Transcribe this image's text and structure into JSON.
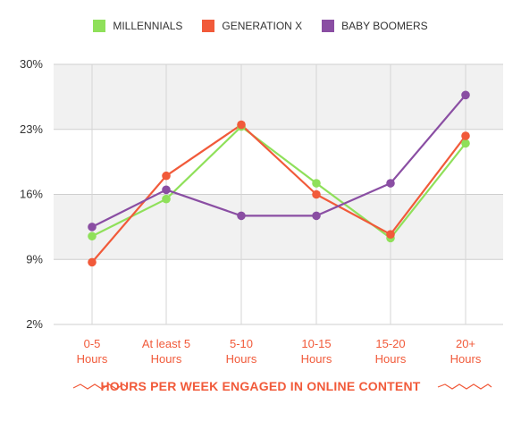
{
  "chart_data": {
    "type": "line",
    "categories": [
      {
        "line1": "0-5",
        "line2": "Hours"
      },
      {
        "line1": "At least 5",
        "line2": "Hours"
      },
      {
        "line1": "5-10",
        "line2": "Hours"
      },
      {
        "line1": "10-15",
        "line2": "Hours"
      },
      {
        "line1": "15-20",
        "line2": "Hours"
      },
      {
        "line1": "20+",
        "line2": "Hours"
      }
    ],
    "series": [
      {
        "name": "MILLENNIALS",
        "color": "#8fe05a",
        "values": [
          11.5,
          15.5,
          23.3,
          17.2,
          11.3,
          21.5
        ]
      },
      {
        "name": "GENERATION X",
        "color": "#f15a3a",
        "values": [
          8.7,
          18.0,
          23.5,
          16.0,
          11.7,
          22.3
        ]
      },
      {
        "name": "BABY BOOMERS",
        "color": "#8a4ea3",
        "values": [
          12.5,
          16.5,
          13.7,
          13.7,
          17.2,
          26.7
        ]
      }
    ],
    "yticks": [
      "30%",
      "23%",
      "16%",
      "9%",
      "2%"
    ],
    "ytick_values": [
      30,
      23,
      16,
      9,
      2
    ],
    "ylim": [
      2,
      30
    ],
    "xlabel": "HOURS PER WEEK ENGAGED IN ONLINE CONTENT",
    "legend_position": "top-center",
    "band_color": "#f1f1f1",
    "axis_label_color": "#f15a3a"
  }
}
